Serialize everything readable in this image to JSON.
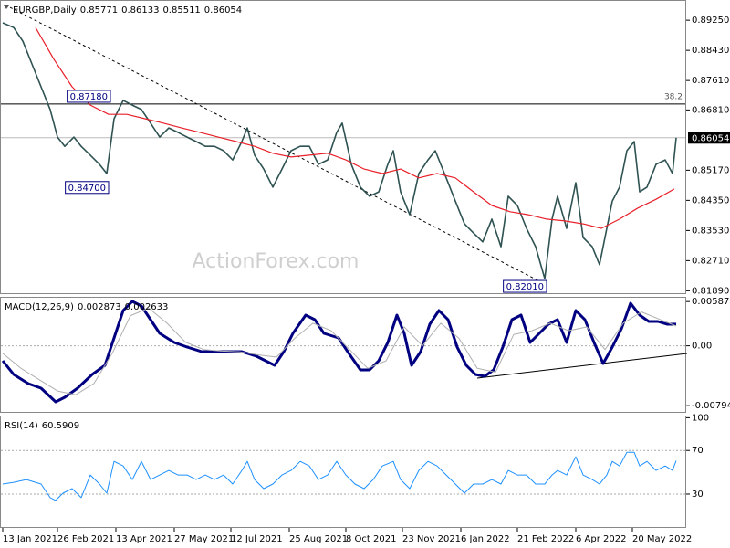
{
  "chart_data": [
    {
      "type": "line",
      "title": "EURGBP,Daily",
      "ohlc": [
        0.85771,
        0.86133,
        0.85511,
        0.86054
      ],
      "watermark": "ActionForex.com",
      "xlim": [
        -1.5,
        374.5
      ],
      "ylim": [
        0.818,
        0.898
      ],
      "yticks": [
        {
          "value": 0.8925,
          "label": "0.89250"
        },
        {
          "value": 0.8843,
          "label": "0.88430"
        },
        {
          "value": 0.8761,
          "label": "0.87610"
        },
        {
          "value": 0.8681,
          "label": "0.86810"
        },
        {
          "value": 0.8517,
          "label": "0.85170"
        },
        {
          "value": 0.8435,
          "label": "0.84350"
        },
        {
          "value": 0.8353,
          "label": "0.83530"
        },
        {
          "value": 0.8271,
          "label": "0.82710"
        },
        {
          "value": 0.8189,
          "label": "0.81890"
        }
      ],
      "series": [
        {
          "color": "#2f5252",
          "width": 1.6,
          "x": [
            0,
            6,
            11,
            16,
            21,
            26,
            30,
            34,
            39,
            43,
            48,
            53,
            57,
            61,
            66,
            71,
            76,
            81,
            86,
            91,
            96,
            101,
            106,
            111,
            116,
            121,
            126,
            131,
            134,
            138,
            143,
            148,
            153,
            158,
            163,
            168,
            173,
            178,
            183,
            186,
            191,
            196,
            201,
            206,
            211,
            214,
            218,
            223,
            228,
            233,
            237,
            243,
            248,
            253,
            258,
            263,
            268,
            273,
            277,
            282,
            287,
            292,
            297,
            301,
            304,
            309,
            314,
            318,
            323,
            327,
            331,
            334,
            338,
            342,
            346,
            349,
            353,
            358,
            363,
            367,
            369
          ],
          "values": [
            0.8918,
            0.8905,
            0.8868,
            0.8806,
            0.8744,
            0.8682,
            0.8607,
            0.8582,
            0.8607,
            0.8582,
            0.8558,
            0.8533,
            0.8508,
            0.8657,
            0.8707,
            0.8694,
            0.8682,
            0.8645,
            0.8607,
            0.8632,
            0.862,
            0.8607,
            0.8595,
            0.8582,
            0.8582,
            0.857,
            0.8545,
            0.8595,
            0.8632,
            0.8558,
            0.852,
            0.8471,
            0.852,
            0.857,
            0.8582,
            0.8582,
            0.8533,
            0.8545,
            0.862,
            0.8645,
            0.8533,
            0.8471,
            0.8446,
            0.8458,
            0.8533,
            0.857,
            0.8458,
            0.8396,
            0.8508,
            0.8545,
            0.857,
            0.8496,
            0.8433,
            0.8371,
            0.8346,
            0.8322,
            0.8384,
            0.8309,
            0.8446,
            0.8421,
            0.8359,
            0.8309,
            0.8222,
            0.8384,
            0.8446,
            0.8359,
            0.8483,
            0.8334,
            0.8309,
            0.826,
            0.8359,
            0.8433,
            0.8471,
            0.857,
            0.8595,
            0.8458,
            0.8471,
            0.8533,
            0.8545,
            0.8508,
            0.86054
          ]
        },
        {
          "color": "#e8202a",
          "width": 1.2,
          "x": [
            18,
            28,
            38,
            48,
            58,
            68,
            78,
            88,
            98,
            108,
            118,
            128,
            138,
            148,
            158,
            168,
            178,
            188,
            198,
            208,
            218,
            228,
            238,
            248,
            258,
            268,
            278,
            288,
            298,
            308,
            318,
            328,
            338,
            348,
            358,
            368
          ],
          "values": [
            0.8905,
            0.8819,
            0.8744,
            0.8694,
            0.8669,
            0.8669,
            0.8657,
            0.8645,
            0.8632,
            0.862,
            0.8607,
            0.8595,
            0.8582,
            0.8563,
            0.8553,
            0.8558,
            0.8563,
            0.8545,
            0.852,
            0.8508,
            0.852,
            0.8496,
            0.8508,
            0.8496,
            0.8458,
            0.8421,
            0.8404,
            0.8396,
            0.8384,
            0.8379,
            0.8371,
            0.8359,
            0.8384,
            0.8414,
            0.8438,
            0.8466
          ]
        }
      ],
      "trendlines": [
        {
          "x": [
            4,
            298
          ],
          "y": [
            0.896,
            0.8205
          ],
          "dash": "3,3"
        }
      ],
      "levels": [
        {
          "value": 0.8697,
          "label": "38.2"
        }
      ],
      "annotations": [
        {
          "x": 58,
          "value": 0.8718,
          "label": "0.87180"
        },
        {
          "x": 57,
          "value": 0.847,
          "label": "0.84700"
        },
        {
          "x": 297,
          "value": 0.8201,
          "label": "0.82010"
        }
      ]
    },
    {
      "type": "line",
      "title": "MACD(12,26,9)",
      "xlim": [
        -1.5,
        374.5
      ],
      "ylim": [
        -0.0089,
        0.0065
      ],
      "yticks": [
        0.005872,
        {
          "value": 0,
          "label": "0.00"
        },
        -0.007945
      ],
      "hlines": [
        0
      ],
      "series": [
        {
          "color": "#000080",
          "width": 3,
          "x": [
            0,
            6,
            14,
            21,
            29,
            34,
            41,
            49,
            56,
            61,
            66,
            71,
            76,
            81,
            86,
            94,
            101,
            109,
            116,
            124,
            131,
            139,
            149,
            154,
            159,
            166,
            171,
            176,
            184,
            189,
            196,
            201,
            206,
            211,
            216,
            220,
            224,
            229,
            234,
            239,
            244,
            249,
            254,
            259,
            264,
            269,
            274,
            279,
            284,
            289,
            294,
            299,
            304,
            309,
            314,
            319,
            324,
            329,
            334,
            339,
            344,
            349,
            354,
            359,
            364,
            367,
            369
          ],
          "values": [
            -0.00199,
            -0.00381,
            -0.00502,
            -0.00563,
            -0.00744,
            -0.00684,
            -0.00563,
            -0.00381,
            -0.00259,
            0.00104,
            0.00468,
            0.00589,
            0.00529,
            0.00347,
            0.00165,
            0.00044,
            -0.00017,
            -0.00078,
            -0.00078,
            -0.00078,
            -0.00078,
            -0.00138,
            -0.00259,
            -0.00078,
            0.00165,
            0.00407,
            0.00347,
            0.00165,
            0.00104,
            -0.00078,
            -0.0032,
            -0.0032,
            -0.00199,
            0.00044,
            0.00407,
            0.00165,
            -0.00259,
            -0.00078,
            0.00286,
            0.00468,
            0.00347,
            -0.00017,
            -0.00259,
            -0.00381,
            -0.00405,
            -0.0032,
            -0.00017,
            0.00347,
            0.00407,
            0.00044,
            0.00165,
            0.00286,
            0.00347,
            0.00044,
            0.00468,
            0.00347,
            0.00044,
            -0.00235,
            -0.00017,
            0.00226,
            0.00565,
            0.00407,
            0.00323,
            0.00323,
            0.00286,
            0.00286,
            0.002873
          ]
        },
        {
          "color": "#b0b0b0",
          "width": 1,
          "x": [
            0,
            10,
            20,
            30,
            40,
            50,
            60,
            70,
            80,
            90,
            100,
            110,
            120,
            130,
            140,
            150,
            160,
            170,
            180,
            190,
            200,
            210,
            220,
            230,
            240,
            250,
            260,
            270,
            280,
            290,
            300,
            310,
            320,
            330,
            340,
            350,
            360,
            369
          ],
          "values": [
            -0.001,
            -0.003,
            -0.0045,
            -0.006,
            -0.0065,
            -0.005,
            -0.001,
            0.004,
            0.005,
            0.003,
            0.0005,
            -0.0005,
            -0.0007,
            -0.0008,
            -0.0012,
            -0.0015,
            0.001,
            0.003,
            0.002,
            -0.0005,
            -0.003,
            -0.002,
            0.0025,
            0,
            0.003,
            0.001,
            -0.003,
            -0.0035,
            0.0015,
            0.002,
            0.003,
            0.002,
            0.0025,
            -0.0005,
            0.003,
            0.0045,
            0.0035,
            0.002633
          ]
        }
      ],
      "trendlines": [
        {
          "x": [
            260,
            375
          ],
          "y": [
            -0.00429,
            -0.00102
          ]
        }
      ]
    },
    {
      "type": "line",
      "title": "RSI(14)",
      "xlim": [
        -1.5,
        374.5
      ],
      "ylim": [
        -1,
        102
      ],
      "yticks": [
        100,
        70,
        30
      ],
      "hlines": [
        70,
        30
      ],
      "xticks": [
        {
          "value": 0,
          "label": "13 Jan 2021"
        },
        {
          "value": 30,
          "label": "26 Feb 2021"
        },
        {
          "value": 62,
          "label": "13 Apr 2021"
        },
        {
          "value": 94,
          "label": "27 May 2021"
        },
        {
          "value": 125,
          "label": "12 Jul 2021"
        },
        {
          "value": 157,
          "label": "25 Aug 2021"
        },
        {
          "value": 188,
          "label": "8 Oct 2021"
        },
        {
          "value": 219,
          "label": "23 Nov 2021"
        },
        {
          "value": 251,
          "label": "6 Jan 2022"
        },
        {
          "value": 282,
          "label": "21 Feb 2022"
        },
        {
          "value": 314,
          "label": "6 Apr 2022"
        },
        {
          "value": 345,
          "label": "20 May 2022"
        }
      ],
      "series": [
        {
          "color": "#1e90ff",
          "width": 1,
          "x": [
            0,
            6,
            13,
            21,
            26,
            29,
            33,
            38,
            43,
            48,
            53,
            57,
            61,
            66,
            71,
            76,
            81,
            86,
            91,
            96,
            101,
            106,
            111,
            116,
            121,
            126,
            131,
            134,
            138,
            143,
            148,
            153,
            158,
            163,
            168,
            173,
            178,
            183,
            188,
            193,
            198,
            203,
            208,
            214,
            218,
            223,
            228,
            233,
            238,
            243,
            248,
            253,
            258,
            263,
            268,
            273,
            277,
            282,
            287,
            292,
            297,
            301,
            304,
            309,
            314,
            318,
            323,
            327,
            331,
            334,
            338,
            342,
            346,
            349,
            353,
            358,
            363,
            367,
            369
          ],
          "values": [
            39.2,
            40.8,
            43.3,
            39.2,
            26.7,
            24.2,
            30.8,
            35.0,
            26.7,
            47.5,
            39.2,
            30.8,
            60.0,
            55.8,
            43.3,
            60.0,
            43.3,
            47.5,
            51.7,
            47.5,
            47.5,
            43.3,
            47.5,
            43.3,
            47.5,
            39.2,
            51.7,
            60.0,
            43.3,
            35.0,
            39.2,
            47.5,
            51.7,
            60.0,
            55.8,
            43.3,
            47.5,
            60.0,
            47.5,
            39.2,
            35.0,
            43.3,
            55.8,
            60.0,
            43.3,
            35.0,
            51.7,
            60.0,
            55.8,
            47.5,
            39.2,
            30.8,
            39.2,
            39.2,
            43.3,
            39.2,
            51.7,
            47.5,
            47.5,
            39.2,
            39.2,
            47.5,
            51.7,
            47.5,
            64.2,
            47.5,
            43.3,
            39.2,
            47.5,
            60.0,
            55.8,
            68.3,
            68.3,
            55.8,
            60.0,
            51.7,
            55.8,
            51.7,
            60.5909
          ]
        }
      ]
    }
  ]
}
